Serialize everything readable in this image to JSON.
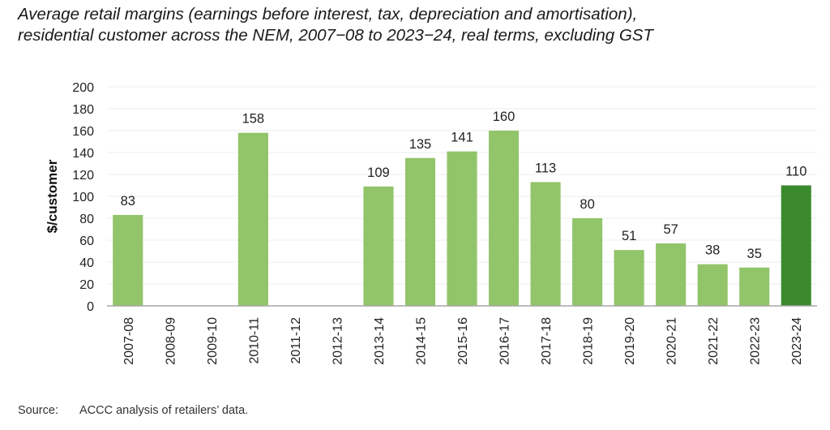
{
  "chart_data": {
    "type": "bar",
    "title_lines": [
      "Average retail margins (earnings before interest, tax, depreciation and amortisation),",
      "residential customer across the NEM, 2007−08 to 2023−24, real terms, excluding GST"
    ],
    "xlabel": "",
    "ylabel": "$/customer",
    "ylim": [
      0,
      200
    ],
    "yticks": [
      0,
      20,
      40,
      60,
      80,
      100,
      120,
      140,
      160,
      180,
      200
    ],
    "grid": true,
    "categories": [
      "2007-08",
      "2008-09",
      "2009-10",
      "2010-11",
      "2011-12",
      "2012-13",
      "2013-14",
      "2014-15",
      "2015-16",
      "2016-17",
      "2017-18",
      "2018-19",
      "2019-20",
      "2020-21",
      "2021-22",
      "2022-23",
      "2023-24"
    ],
    "values": [
      83,
      null,
      null,
      158,
      null,
      null,
      109,
      135,
      141,
      160,
      113,
      80,
      51,
      57,
      38,
      35,
      110
    ],
    "bar_color": "#92c46a",
    "highlight_color": "#3b8a2e",
    "highlight_category": "2023-24"
  },
  "source": {
    "label": "Source:",
    "text": "ACCC analysis of retailers’ data."
  }
}
